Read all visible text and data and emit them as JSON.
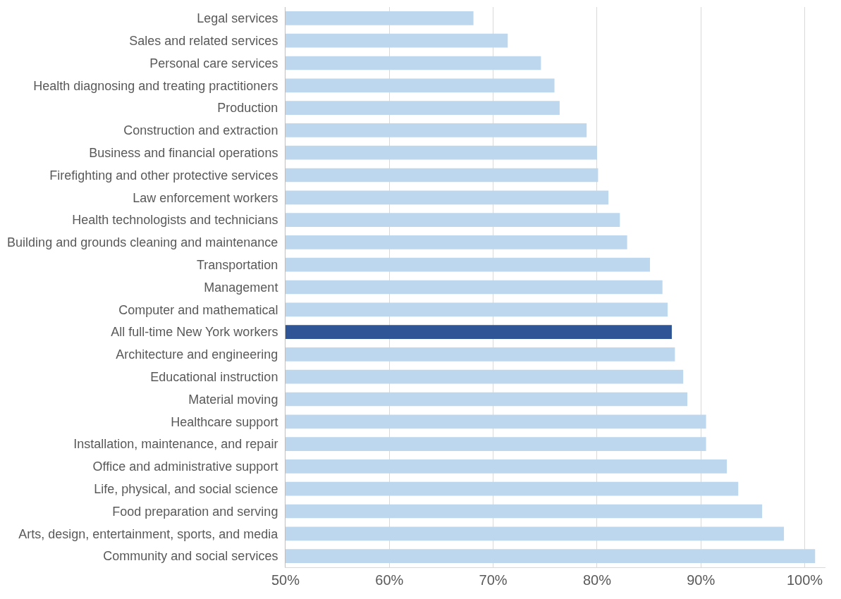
{
  "chart_data": {
    "type": "bar",
    "orientation": "horizontal",
    "categories": [
      "Legal services",
      "Sales and related services",
      "Personal care services",
      "Health diagnosing and treating practitioners",
      "Production",
      "Construction and extraction",
      "Business and financial operations",
      "Firefighting and other protective services",
      "Law enforcement workers",
      "Health technologists and technicians",
      "Building and grounds cleaning and maintenance",
      "Transportation",
      "Management",
      "Computer and mathematical",
      "All full-time New York workers",
      "Architecture and engineering",
      "Educational instruction",
      "Material moving",
      "Healthcare support",
      "Installation, maintenance, and repair",
      "Office and administrative support",
      "Life, physical, and social science",
      "Food preparation and serving",
      "Arts, design, entertainment, sports, and media",
      "Community and social services"
    ],
    "values": [
      68.1,
      71.4,
      74.6,
      75.9,
      76.4,
      79.0,
      80.0,
      80.1,
      81.1,
      82.2,
      82.9,
      85.1,
      86.3,
      86.8,
      87.2,
      87.5,
      88.3,
      88.7,
      90.5,
      90.5,
      92.5,
      93.6,
      95.9,
      98.0,
      101.0
    ],
    "colors": [
      "#bdd7ee",
      "#bdd7ee",
      "#bdd7ee",
      "#bdd7ee",
      "#bdd7ee",
      "#bdd7ee",
      "#bdd7ee",
      "#bdd7ee",
      "#bdd7ee",
      "#bdd7ee",
      "#bdd7ee",
      "#bdd7ee",
      "#bdd7ee",
      "#bdd7ee",
      "#2f5597",
      "#bdd7ee",
      "#bdd7ee",
      "#bdd7ee",
      "#bdd7ee",
      "#bdd7ee",
      "#bdd7ee",
      "#bdd7ee",
      "#bdd7ee",
      "#bdd7ee",
      "#bdd7ee"
    ],
    "xlim": [
      50,
      102
    ],
    "xticks": [
      {
        "value": 50,
        "label": "50%"
      },
      {
        "value": 60,
        "label": "60%"
      },
      {
        "value": 70,
        "label": "70%"
      },
      {
        "value": 80,
        "label": "80%"
      },
      {
        "value": 90,
        "label": "90%"
      },
      {
        "value": 100,
        "label": "100%"
      }
    ],
    "grid": "x"
  }
}
